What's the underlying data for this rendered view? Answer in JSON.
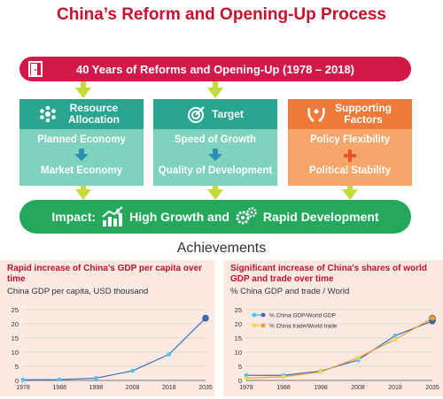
{
  "title": "China’s Reform and Opening-Up Process",
  "banner": {
    "label": "40 Years of Reforms and Opening-Up (1978 – 2018)",
    "icon": "door-icon"
  },
  "boxes": [
    {
      "head": "Resource Allocation",
      "top": "Planned Economy",
      "bottom": "Market Economy",
      "icon": "snowflake-icon",
      "connector": "arrow-down-icon"
    },
    {
      "head": "Target",
      "top": "Speed of Growth",
      "bottom": "Quality of Development",
      "icon": "target-icon",
      "connector": "arrow-down-icon"
    },
    {
      "head": "Supporting Factors",
      "top": "Policy Flexibility",
      "bottom": "Political Stability",
      "icon": "hands-icon",
      "connector": "plus-icon"
    }
  ],
  "impact": {
    "label": "Impact:",
    "part1": "High Growth and",
    "part2": "Rapid Development"
  },
  "achievements": "Achievements",
  "colors": {
    "title": "#c8102e",
    "banner": "#d3184a",
    "green": "#2aa58f",
    "orange": "#f07a3a",
    "impact": "#25a85c",
    "arrow": "#c5d93a"
  },
  "chart_data": [
    {
      "type": "line",
      "title": "Rapid increase of China's GDP per capita over time",
      "ylabel": "China GDP per capita, USD thousand",
      "x": [
        "1978",
        "1988",
        "1998",
        "2008",
        "2018",
        "2035"
      ],
      "series": [
        {
          "values": [
            0.2,
            0.3,
            0.8,
            3.4,
            9.2,
            22
          ],
          "color": "#3a6fb7"
        }
      ],
      "ylim": [
        0,
        25
      ],
      "yticks": [
        "0",
        "5",
        "10",
        "15",
        "20",
        "25"
      ],
      "grid": true
    },
    {
      "type": "line",
      "title": "Significant increase of China's shares of world GDP and trade over time",
      "ylabel": "% China GDP and trade / World",
      "x": [
        "1978",
        "1988",
        "1998",
        "2008",
        "2018",
        "2035"
      ],
      "series": [
        {
          "name": "% China GDP/World GDP",
          "values": [
            1.8,
            1.8,
            3.3,
            7.2,
            15.8,
            21
          ],
          "color": "#3a6fb7",
          "marker": "#4fc3f7"
        },
        {
          "name": "% China trade/World trade",
          "values": [
            0.8,
            1.3,
            3.0,
            8.0,
            14.5,
            22
          ],
          "color": "#f0a030",
          "marker": "#ffd54f"
        }
      ],
      "ylim": [
        0,
        25
      ],
      "yticks": [
        "0",
        "5",
        "10",
        "15",
        "20",
        "25"
      ],
      "legend": "top-left",
      "grid": true
    }
  ]
}
